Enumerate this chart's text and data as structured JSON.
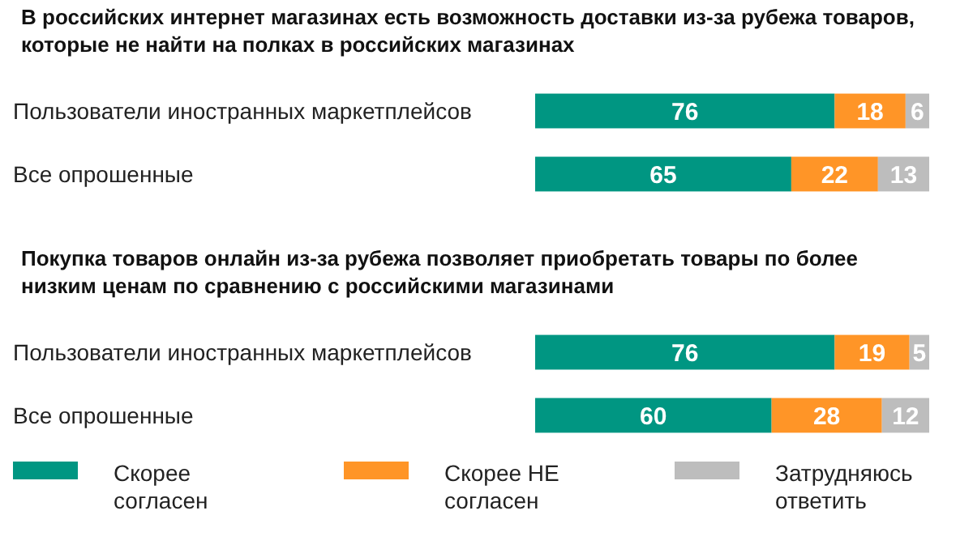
{
  "chart_data": [
    {
      "type": "bar",
      "orientation": "horizontal",
      "stacked": true,
      "title": "В российских интернет магазинах есть возможность доставки из-за рубежа товаров, которые не найти на полках в российских магазинах",
      "categories": [
        "Пользователи иностранных маркетплейсов",
        "Все опрошенные"
      ],
      "series": [
        {
          "color": "#009682",
          "values": [
            76,
            65
          ]
        },
        {
          "color": "#ff9527",
          "values": [
            18,
            22
          ]
        },
        {
          "color": "#bdbdbd",
          "values": [
            6,
            13
          ]
        }
      ],
      "data_labels": true,
      "tick_labels": "y",
      "legend": false
    },
    {
      "type": "bar",
      "orientation": "horizontal",
      "stacked": true,
      "title": "Покупка товаров онлайн из-за рубежа позволяет приобретать товары по более низким ценам по сравнению с российскими магазинами",
      "categories": [
        "Пользователи иностранных маркетплейсов",
        "Все опрошенные"
      ],
      "series": [
        {
          "name": "Скорее согласен",
          "color": "#009682",
          "values": [
            76,
            60
          ]
        },
        {
          "name": "Скорее НЕ согласен",
          "color": "#ff9527",
          "values": [
            19,
            28
          ]
        },
        {
          "name": "Затрудняюсь ответить",
          "color": "#bdbdbd",
          "values": [
            5,
            12
          ]
        }
      ],
      "data_labels": true,
      "tick_labels": "y",
      "legend": "bottom"
    }
  ]
}
